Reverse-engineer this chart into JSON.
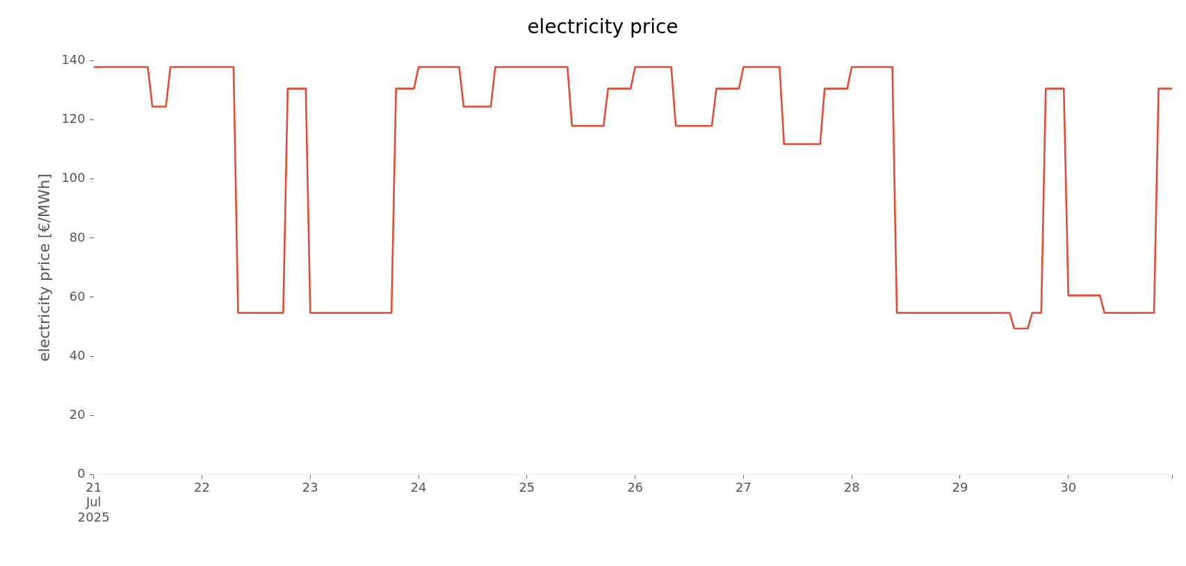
{
  "chart_data": {
    "type": "line",
    "title": "electricity price",
    "ylabel": "electricity price [€/MWh]",
    "x": [
      "2025-07-21T00:00",
      "2025-07-21T12:00",
      "2025-07-21T13:00",
      "2025-07-21T16:00",
      "2025-07-21T17:00",
      "2025-07-22T07:00",
      "2025-07-22T08:00",
      "2025-07-22T18:00",
      "2025-07-22T19:00",
      "2025-07-22T23:00",
      "2025-07-23T00:00",
      "2025-07-23T18:00",
      "2025-07-23T19:00",
      "2025-07-23T23:00",
      "2025-07-24T00:00",
      "2025-07-24T09:00",
      "2025-07-24T10:00",
      "2025-07-24T16:00",
      "2025-07-24T17:00",
      "2025-07-25T09:00",
      "2025-07-25T10:00",
      "2025-07-25T17:00",
      "2025-07-25T18:00",
      "2025-07-25T23:00",
      "2025-07-26T00:00",
      "2025-07-26T08:00",
      "2025-07-26T09:00",
      "2025-07-26T17:00",
      "2025-07-26T18:00",
      "2025-07-26T23:00",
      "2025-07-27T00:00",
      "2025-07-27T08:00",
      "2025-07-27T09:00",
      "2025-07-27T17:00",
      "2025-07-27T18:00",
      "2025-07-27T23:00",
      "2025-07-28T00:00",
      "2025-07-28T09:00",
      "2025-07-28T10:00",
      "2025-07-29T11:00",
      "2025-07-29T12:00",
      "2025-07-29T15:00",
      "2025-07-29T16:00",
      "2025-07-29T18:00",
      "2025-07-29T19:00",
      "2025-07-29T23:00",
      "2025-07-30T00:00",
      "2025-07-30T07:00",
      "2025-07-30T08:00",
      "2025-07-30T19:00",
      "2025-07-30T20:00",
      "2025-07-30T23:00"
    ],
    "series": [
      {
        "color": "#e24a33",
        "values": [
          137.9,
          137.9,
          124.5,
          124.5,
          137.9,
          137.9,
          54.7,
          54.7,
          130.6,
          130.6,
          54.7,
          54.7,
          130.6,
          130.6,
          137.9,
          137.9,
          124.5,
          124.5,
          137.9,
          137.9,
          118.0,
          118.0,
          130.6,
          130.6,
          137.9,
          137.9,
          118.0,
          118.0,
          130.6,
          130.6,
          137.9,
          137.9,
          111.8,
          111.8,
          130.6,
          130.6,
          137.9,
          137.9,
          54.7,
          54.7,
          49.4,
          49.4,
          54.7,
          54.7,
          130.6,
          130.6,
          60.6,
          60.6,
          54.7,
          54.7,
          130.6,
          130.6
        ]
      }
    ],
    "xlim": [
      "2025-07-21T00:00",
      "2025-07-30T23:00"
    ],
    "xticks": [
      {
        "value": "2025-07-21",
        "label": "21\nJul\n2025"
      },
      {
        "value": "2025-07-22",
        "label": "22"
      },
      {
        "value": "2025-07-23",
        "label": "23"
      },
      {
        "value": "2025-07-24",
        "label": "24"
      },
      {
        "value": "2025-07-25",
        "label": "25"
      },
      {
        "value": "2025-07-26",
        "label": "26"
      },
      {
        "value": "2025-07-27",
        "label": "27"
      },
      {
        "value": "2025-07-28",
        "label": "28"
      },
      {
        "value": "2025-07-29",
        "label": "29"
      },
      {
        "value": "2025-07-30",
        "label": "30"
      },
      {
        "value": "2025-07-30T23:00",
        "label": null
      }
    ],
    "ylim": [
      0,
      140
    ],
    "yticks": [
      0,
      20,
      40,
      60,
      80,
      100,
      120,
      140
    ],
    "marker": "none",
    "line_style": "solid"
  }
}
